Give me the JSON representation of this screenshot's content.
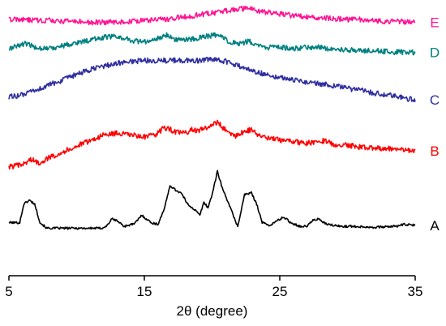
{
  "chart_data": {
    "type": "line",
    "xlabel": "2θ (degree)",
    "ylabel": "",
    "xlim": [
      5,
      35
    ],
    "x_ticks": [
      5,
      15,
      25,
      35
    ],
    "x_tick_labels": [
      "5",
      "15",
      "25",
      "35"
    ],
    "y_axis_visible": false,
    "grid": false,
    "series": [
      {
        "name": "A",
        "color": "#000000",
        "baseline": 0.1,
        "points": [
          [
            5,
            0.1
          ],
          [
            5.8,
            0.1
          ],
          [
            6.1,
            0.3
          ],
          [
            6.5,
            0.34
          ],
          [
            6.9,
            0.3
          ],
          [
            7.3,
            0.1
          ],
          [
            7.8,
            0.04
          ],
          [
            11.8,
            0.04
          ],
          [
            12.2,
            0.06
          ],
          [
            12.6,
            0.14
          ],
          [
            13.0,
            0.12
          ],
          [
            13.5,
            0.06
          ],
          [
            14.3,
            0.09
          ],
          [
            14.8,
            0.18
          ],
          [
            15.5,
            0.1
          ],
          [
            16.0,
            0.08
          ],
          [
            16.5,
            0.26
          ],
          [
            16.9,
            0.5
          ],
          [
            17.3,
            0.45
          ],
          [
            17.7,
            0.42
          ],
          [
            18.2,
            0.3
          ],
          [
            18.7,
            0.24
          ],
          [
            19.1,
            0.18
          ],
          [
            19.4,
            0.32
          ],
          [
            19.7,
            0.26
          ],
          [
            20.0,
            0.4
          ],
          [
            20.4,
            0.65
          ],
          [
            20.8,
            0.45
          ],
          [
            21.2,
            0.32
          ],
          [
            21.6,
            0.16
          ],
          [
            21.9,
            0.06
          ],
          [
            22.4,
            0.4
          ],
          [
            22.9,
            0.42
          ],
          [
            23.3,
            0.3
          ],
          [
            23.7,
            0.1
          ],
          [
            24.3,
            0.07
          ],
          [
            24.8,
            0.12
          ],
          [
            25.3,
            0.16
          ],
          [
            25.8,
            0.1
          ],
          [
            26.5,
            0.06
          ],
          [
            27.0,
            0.06
          ],
          [
            27.4,
            0.12
          ],
          [
            27.8,
            0.14
          ],
          [
            28.5,
            0.08
          ],
          [
            29.5,
            0.06
          ],
          [
            30.5,
            0.06
          ],
          [
            32.0,
            0.05
          ],
          [
            33.5,
            0.06
          ],
          [
            34.2,
            0.08
          ],
          [
            35,
            0.07
          ]
        ]
      },
      {
        "name": "B",
        "color": "#ff0000",
        "baseline": 0.7,
        "points": [
          [
            5,
            0.7
          ],
          [
            6.0,
            0.72
          ],
          [
            6.6,
            0.78
          ],
          [
            7.2,
            0.74
          ],
          [
            8,
            0.8
          ],
          [
            9,
            0.86
          ],
          [
            10,
            0.92
          ],
          [
            11,
            0.98
          ],
          [
            12,
            1.04
          ],
          [
            13,
            1.06
          ],
          [
            14,
            1.04
          ],
          [
            15,
            1.02
          ],
          [
            15.8,
            1.04
          ],
          [
            16.3,
            1.1
          ],
          [
            16.7,
            1.12
          ],
          [
            17.3,
            1.07
          ],
          [
            18,
            1.06
          ],
          [
            18.5,
            1.1
          ],
          [
            19.0,
            1.08
          ],
          [
            19.5,
            1.12
          ],
          [
            20.0,
            1.14
          ],
          [
            20.4,
            1.18
          ],
          [
            20.8,
            1.12
          ],
          [
            21.3,
            1.06
          ],
          [
            21.8,
            1.03
          ],
          [
            22.4,
            1.08
          ],
          [
            22.9,
            1.1
          ],
          [
            23.4,
            1.04
          ],
          [
            24.2,
            1.0
          ],
          [
            25,
            0.99
          ],
          [
            26,
            0.97
          ],
          [
            27,
            0.95
          ],
          [
            27.7,
            0.97
          ],
          [
            28.3,
            0.98
          ],
          [
            29,
            0.94
          ],
          [
            30,
            0.93
          ],
          [
            31,
            0.91
          ],
          [
            32,
            0.9
          ],
          [
            33,
            0.9
          ],
          [
            34,
            0.88
          ],
          [
            35,
            0.87
          ]
        ]
      },
      {
        "name": "C",
        "color": "#2e2ea0",
        "baseline": 1.45,
        "points": [
          [
            5,
            1.45
          ],
          [
            6,
            1.47
          ],
          [
            7,
            1.52
          ],
          [
            8,
            1.58
          ],
          [
            9,
            1.63
          ],
          [
            10,
            1.69
          ],
          [
            11,
            1.74
          ],
          [
            12,
            1.78
          ],
          [
            13,
            1.81
          ],
          [
            14,
            1.83
          ],
          [
            15,
            1.84
          ],
          [
            16,
            1.84
          ],
          [
            17,
            1.84
          ],
          [
            18,
            1.84
          ],
          [
            19,
            1.84
          ],
          [
            20,
            1.85
          ],
          [
            21,
            1.83
          ],
          [
            22,
            1.78
          ],
          [
            23,
            1.73
          ],
          [
            24,
            1.69
          ],
          [
            25,
            1.66
          ],
          [
            26,
            1.63
          ],
          [
            27,
            1.61
          ],
          [
            28,
            1.59
          ],
          [
            29,
            1.57
          ],
          [
            30,
            1.54
          ],
          [
            31,
            1.52
          ],
          [
            32,
            1.49
          ],
          [
            33,
            1.47
          ],
          [
            34,
            1.44
          ],
          [
            35,
            1.42
          ]
        ]
      },
      {
        "name": "D",
        "color": "#008080",
        "baseline": 1.96,
        "points": [
          [
            5,
            1.96
          ],
          [
            5.6,
            2.0
          ],
          [
            6.2,
            2.02
          ],
          [
            7,
            1.98
          ],
          [
            8,
            1.97
          ],
          [
            9,
            2.0
          ],
          [
            10,
            2.03
          ],
          [
            11,
            2.06
          ],
          [
            12,
            2.09
          ],
          [
            12.8,
            2.1
          ],
          [
            13.5,
            2.08
          ],
          [
            14.3,
            2.05
          ],
          [
            15,
            2.04
          ],
          [
            15.8,
            2.06
          ],
          [
            16.3,
            2.1
          ],
          [
            16.7,
            2.12
          ],
          [
            17.2,
            2.07
          ],
          [
            18,
            2.06
          ],
          [
            19,
            2.08
          ],
          [
            19.6,
            2.1
          ],
          [
            20.2,
            2.11
          ],
          [
            20.6,
            2.1
          ],
          [
            21.2,
            2.05
          ],
          [
            22,
            2.01
          ],
          [
            22.7,
            2.05
          ],
          [
            23.3,
            2.0
          ],
          [
            24,
            1.98
          ],
          [
            25,
            1.98
          ],
          [
            26,
            1.97
          ],
          [
            27,
            1.98
          ],
          [
            27.8,
            1.99
          ],
          [
            28.5,
            1.97
          ],
          [
            29.5,
            1.96
          ],
          [
            30.5,
            1.95
          ],
          [
            31.5,
            1.95
          ],
          [
            32.5,
            1.94
          ],
          [
            33.5,
            1.93
          ],
          [
            34.2,
            1.93
          ],
          [
            35,
            1.93
          ]
        ]
      },
      {
        "name": "E",
        "color": "#ff1493",
        "baseline": 2.28,
        "points": [
          [
            5,
            2.28
          ],
          [
            6,
            2.28
          ],
          [
            7,
            2.27
          ],
          [
            8,
            2.27
          ],
          [
            9,
            2.26
          ],
          [
            10,
            2.26
          ],
          [
            11,
            2.25
          ],
          [
            12,
            2.25
          ],
          [
            13,
            2.25
          ],
          [
            14,
            2.26
          ],
          [
            15,
            2.27
          ],
          [
            16,
            2.28
          ],
          [
            17,
            2.29
          ],
          [
            18,
            2.31
          ],
          [
            19,
            2.33
          ],
          [
            20,
            2.35
          ],
          [
            21,
            2.37
          ],
          [
            21.8,
            2.39
          ],
          [
            22.5,
            2.4
          ],
          [
            23.2,
            2.38
          ],
          [
            24,
            2.36
          ],
          [
            25,
            2.34
          ],
          [
            26,
            2.32
          ],
          [
            27,
            2.31
          ],
          [
            28,
            2.3
          ],
          [
            29,
            2.29
          ],
          [
            30,
            2.28
          ],
          [
            31,
            2.28
          ],
          [
            32,
            2.27
          ],
          [
            33,
            2.26
          ],
          [
            34,
            2.26
          ],
          [
            35,
            2.25
          ]
        ]
      }
    ]
  }
}
